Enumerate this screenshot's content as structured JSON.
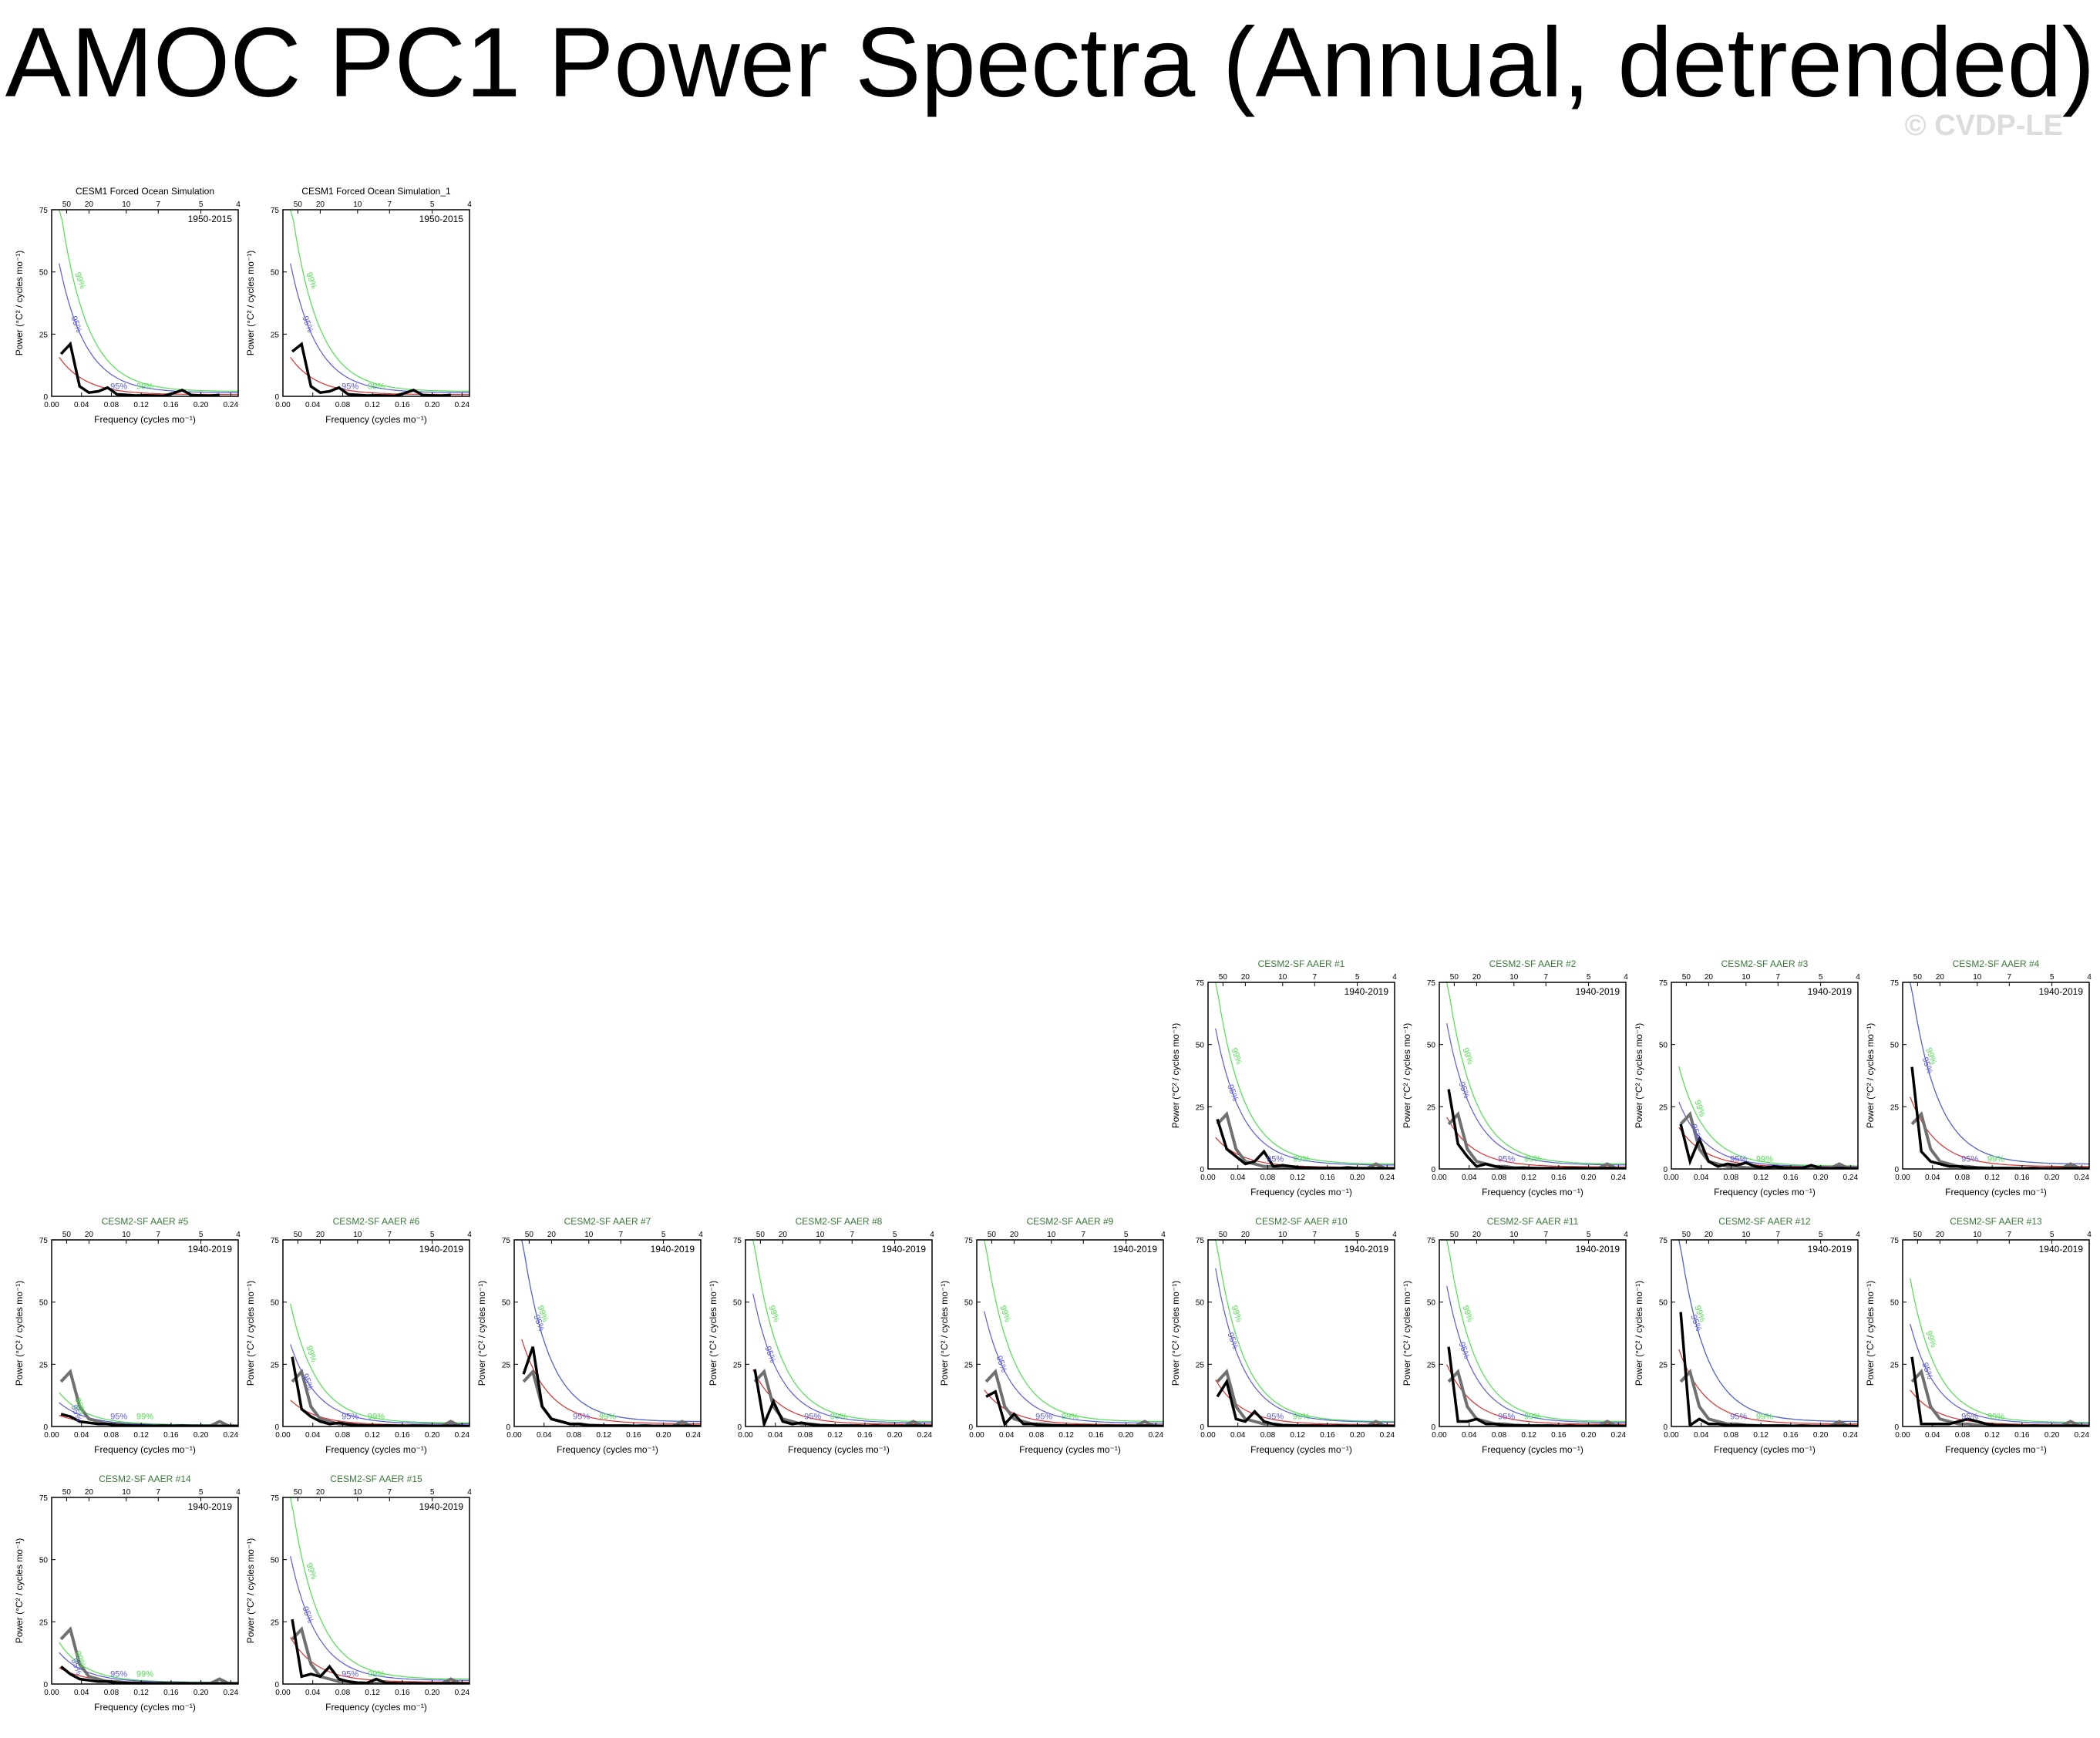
{
  "title": "AMOC PC1 Power Spectra (Annual, detrended)",
  "watermark": "© CVDP-LE",
  "colors": {
    "spectrum": "#000000",
    "ensemble_mean": "#707070",
    "red_noise": "#e03030",
    "conf95": "#5a5ae0",
    "conf99": "#50e050",
    "mean_peak": "#3a8a3a",
    "member_title": "#3a7a3a",
    "obs_title": "#000000"
  },
  "axes": {
    "xlabel": "Frequency (cycles mo⁻¹)",
    "ylabel": "Power (°C² / cycles mo⁻¹)",
    "xticks": [
      "0.00",
      "0.04",
      "0.08",
      "0.12",
      "0.16",
      "0.20",
      "0.24"
    ],
    "yticks": [
      "0",
      "25",
      "50",
      "75"
    ],
    "period_ticks": [
      "50",
      "20",
      "10",
      "7",
      "5",
      "4"
    ],
    "ci_labels": [
      "95%",
      "99%"
    ],
    "xlim": [
      0,
      0.25
    ],
    "ylim": [
      0,
      75
    ]
  },
  "chart_data": [
    {
      "type": "line",
      "title": "CESM1 Forced Ocean Simulation",
      "years": "1950-2015",
      "spectrum": [
        17,
        21,
        4,
        1.5,
        2,
        3.5,
        0.8,
        0.6,
        0.3,
        0.4,
        0.3,
        0.2,
        1.2,
        2.5,
        0.5,
        0.3,
        0.2,
        0.6
      ],
      "mean": null,
      "rn_start": 15,
      "c95_start": 52,
      "c99_start": 77
    },
    {
      "type": "line",
      "title": "CESM1 Forced Ocean Simulation_1",
      "years": "1950-2015",
      "spectrum": [
        18,
        21,
        4,
        1.5,
        2,
        3.5,
        0.8,
        0.6,
        0.3,
        0.4,
        0.3,
        0.2,
        1.2,
        2.5,
        0.5,
        0.3,
        0.2,
        0.6
      ],
      "mean": null,
      "rn_start": 15,
      "c95_start": 52,
      "c99_start": 77
    },
    {
      "type": "line",
      "title": "CESM2-SF AAER #1",
      "years": "1940-2019",
      "spectrum": [
        20,
        8,
        5,
        2,
        3,
        7,
        1,
        1.5,
        1,
        0.5,
        0.5,
        0.3,
        0.4,
        0.3,
        0.6,
        0.3,
        0.2,
        0.3,
        0.2,
        0.1
      ],
      "mean": [
        18,
        22,
        8,
        3,
        2,
        1,
        1,
        0.5,
        0.4,
        0.3,
        0.3,
        0.3,
        0.2,
        0.3,
        0.2,
        0.2,
        0.2,
        2,
        0.2,
        0.2
      ],
      "rn_start": 12,
      "c95_start": 55,
      "c99_start": 75
    },
    {
      "type": "line",
      "title": "CESM2-SF AAER #2",
      "years": "1940-2019",
      "spectrum": [
        32,
        10,
        5,
        1,
        2,
        1,
        0.5,
        0.3,
        0.5,
        0.3,
        0.2,
        0.3,
        0.2,
        0.4,
        0.3,
        0.2,
        0.2,
        0.3,
        0.2,
        0.1
      ],
      "mean": [
        18,
        22,
        8,
        3,
        2,
        1,
        1,
        0.5,
        0.4,
        0.3,
        0.3,
        0.3,
        0.2,
        0.3,
        0.2,
        0.2,
        0.2,
        2,
        0.2,
        0.2
      ],
      "rn_start": 20,
      "c95_start": 57,
      "c99_start": 75
    },
    {
      "type": "line",
      "title": "CESM2-SF AAER #3",
      "years": "1940-2019",
      "spectrum": [
        18,
        3,
        12,
        3,
        1,
        2,
        1.5,
        2.5,
        1,
        0.5,
        1,
        0.6,
        0.4,
        0.3,
        1.5,
        0.3,
        0.2,
        0.4,
        0.2,
        0.1
      ],
      "mean": [
        18,
        22,
        8,
        3,
        2,
        1,
        1,
        0.5,
        0.4,
        0.3,
        0.3,
        0.3,
        0.2,
        0.3,
        0.2,
        0.2,
        0.2,
        2,
        0.2,
        0.2
      ],
      "rn_start": 16,
      "c95_start": 26,
      "c99_start": 40
    },
    {
      "type": "line",
      "title": "CESM2-SF AAER #4",
      "years": "1940-2019",
      "spectrum": [
        41,
        7,
        3,
        2,
        1,
        1,
        0.5,
        0.5,
        0.3,
        0.3,
        0.3,
        0.2,
        0.2,
        0.3,
        0.2,
        0.2,
        0.2,
        0.3,
        0.2,
        0.1
      ],
      "mean": [
        18,
        22,
        8,
        3,
        2,
        1,
        1,
        0.5,
        0.4,
        0.3,
        0.3,
        0.3,
        0.2,
        0.3,
        0.2,
        0.2,
        0.2,
        2,
        0.2,
        0.2
      ],
      "rn_start": 28,
      "c95_start": 75,
      "c99_start": 75
    },
    {
      "type": "line",
      "title": "CESM2-SF AAER #5",
      "years": "1940-2019",
      "spectrum": [
        5,
        4,
        2,
        1.5,
        1,
        1,
        0.5,
        0.4,
        0.3,
        0.3,
        0.2,
        0.3,
        0.2,
        0.3,
        0.2,
        0.2,
        0.2,
        0.2,
        0.2,
        0.1
      ],
      "mean": [
        18,
        22,
        8,
        3,
        2,
        1,
        1,
        0.5,
        0.4,
        0.3,
        0.3,
        0.3,
        0.2,
        0.3,
        0.2,
        0.2,
        0.2,
        2,
        0.2,
        0.2
      ],
      "rn_start": 4,
      "c95_start": 9,
      "c99_start": 13
    },
    {
      "type": "line",
      "title": "CESM2-SF AAER #6",
      "years": "1940-2019",
      "spectrum": [
        28,
        7,
        4,
        2,
        1,
        1.5,
        0.8,
        0.5,
        0.4,
        0.3,
        0.4,
        0.3,
        0.2,
        0.3,
        0.3,
        0.2,
        0.2,
        0.3,
        0.2,
        0.1
      ],
      "mean": [
        18,
        22,
        8,
        3,
        2,
        1,
        1,
        0.5,
        0.4,
        0.3,
        0.3,
        0.3,
        0.2,
        0.3,
        0.2,
        0.2,
        0.2,
        2,
        0.2,
        0.2
      ],
      "rn_start": 10,
      "c95_start": 32,
      "c99_start": 48
    },
    {
      "type": "line",
      "title": "CESM2-SF AAER #7",
      "years": "1940-2019",
      "spectrum": [
        21,
        32,
        8,
        3,
        2,
        1,
        1,
        0.5,
        0.4,
        0.3,
        0.3,
        0.3,
        0.2,
        0.3,
        0.2,
        0.2,
        0.2,
        0.3,
        0.2,
        0.1
      ],
      "mean": [
        18,
        22,
        8,
        3,
        2,
        1,
        1,
        0.5,
        0.4,
        0.3,
        0.3,
        0.3,
        0.2,
        0.3,
        0.2,
        0.2,
        0.2,
        2,
        0.2,
        0.2
      ],
      "rn_start": 34,
      "c95_start": 75,
      "c99_start": 75
    },
    {
      "type": "line",
      "title": "CESM2-SF AAER #8",
      "years": "1940-2019",
      "spectrum": [
        23,
        1,
        10,
        2,
        1,
        1.5,
        0.8,
        0.5,
        0.4,
        0.3,
        0.3,
        0.3,
        0.2,
        0.3,
        0.2,
        0.2,
        0.2,
        0.3,
        0.2,
        0.1
      ],
      "mean": [
        18,
        22,
        8,
        3,
        2,
        1,
        1,
        0.5,
        0.4,
        0.3,
        0.3,
        0.3,
        0.2,
        0.3,
        0.2,
        0.2,
        0.2,
        2,
        0.2,
        0.2
      ],
      "rn_start": 22,
      "c95_start": 52,
      "c99_start": 75
    },
    {
      "type": "line",
      "title": "CESM2-SF AAER #9",
      "years": "1940-2019",
      "spectrum": [
        12,
        14,
        1,
        5,
        1,
        1,
        0.5,
        0.5,
        0.4,
        0.3,
        0.3,
        0.3,
        0.2,
        0.3,
        0.2,
        0.2,
        0.2,
        0.3,
        0.2,
        0.1
      ],
      "mean": [
        18,
        22,
        8,
        3,
        2,
        1,
        1,
        0.5,
        0.4,
        0.3,
        0.3,
        0.3,
        0.2,
        0.3,
        0.2,
        0.2,
        0.2,
        2,
        0.2,
        0.2
      ],
      "rn_start": 14,
      "c95_start": 45,
      "c99_start": 75
    },
    {
      "type": "line",
      "title": "CESM2-SF AAER #10",
      "years": "1940-2019",
      "spectrum": [
        12,
        18,
        3,
        2,
        6,
        2,
        1,
        0.5,
        0.4,
        0.3,
        0.3,
        0.3,
        0.2,
        0.3,
        0.2,
        0.2,
        0.2,
        0.3,
        0.2,
        0.1
      ],
      "mean": [
        18,
        22,
        8,
        3,
        2,
        1,
        1,
        0.5,
        0.4,
        0.3,
        0.3,
        0.3,
        0.2,
        0.3,
        0.2,
        0.2,
        0.2,
        2,
        0.2,
        0.2
      ],
      "rn_start": 18,
      "c95_start": 62,
      "c99_start": 75
    },
    {
      "type": "line",
      "title": "CESM2-SF AAER #11",
      "years": "1940-2019",
      "spectrum": [
        32,
        2,
        2,
        3,
        1,
        1,
        0.5,
        0.5,
        0.4,
        0.3,
        0.3,
        0.3,
        0.2,
        0.3,
        0.2,
        0.2,
        0.2,
        0.3,
        0.2,
        0.1
      ],
      "mean": [
        18,
        22,
        8,
        3,
        2,
        1,
        1,
        0.5,
        0.4,
        0.3,
        0.3,
        0.3,
        0.2,
        0.3,
        0.2,
        0.2,
        0.2,
        2,
        0.2,
        0.2
      ],
      "rn_start": 24,
      "c95_start": 55,
      "c99_start": 75
    },
    {
      "type": "line",
      "title": "CESM2-SF AAER #12",
      "years": "1940-2019",
      "spectrum": [
        46,
        0.5,
        3,
        1,
        1,
        0.5,
        0.5,
        0.5,
        0.4,
        0.3,
        0.3,
        0.3,
        0.2,
        0.3,
        0.2,
        0.2,
        0.2,
        0.3,
        0.2,
        0.1
      ],
      "mean": [
        18,
        22,
        8,
        3,
        2,
        1,
        1,
        0.5,
        0.4,
        0.3,
        0.3,
        0.3,
        0.2,
        0.3,
        0.2,
        0.2,
        0.2,
        2,
        0.2,
        0.2
      ],
      "rn_start": 30,
      "c95_start": 75,
      "c99_start": 75
    },
    {
      "type": "line",
      "title": "CESM2-SF AAER #13",
      "years": "1940-2019",
      "spectrum": [
        28,
        1,
        1,
        1,
        1,
        2,
        3,
        2,
        1,
        0.5,
        0.5,
        0.3,
        0.2,
        0.3,
        0.2,
        0.2,
        0.2,
        0.3,
        0.2,
        0.1
      ],
      "mean": [
        18,
        22,
        8,
        3,
        2,
        1,
        1,
        0.5,
        0.4,
        0.3,
        0.3,
        0.3,
        0.2,
        0.3,
        0.2,
        0.2,
        0.2,
        2,
        0.2,
        0.2
      ],
      "rn_start": 14,
      "c95_start": 40,
      "c99_start": 58
    },
    {
      "type": "line",
      "title": "CESM2-SF AAER #14",
      "years": "1940-2019",
      "spectrum": [
        7,
        4,
        2,
        1.5,
        1,
        1,
        0.5,
        0.4,
        0.3,
        0.3,
        0.2,
        0.3,
        0.2,
        0.3,
        0.2,
        0.2,
        0.2,
        0.2,
        0.2,
        0.1
      ],
      "mean": [
        18,
        22,
        8,
        3,
        2,
        1,
        1,
        0.5,
        0.4,
        0.3,
        0.3,
        0.3,
        0.2,
        0.3,
        0.2,
        0.2,
        0.2,
        2,
        0.2,
        0.2
      ],
      "rn_start": 6,
      "c95_start": 12,
      "c99_start": 16
    },
    {
      "type": "line",
      "title": "CESM2-SF AAER #15",
      "years": "1940-2019",
      "spectrum": [
        26,
        3,
        4,
        3,
        7,
        2,
        1,
        0.5,
        0.4,
        2,
        0.5,
        0.3,
        0.2,
        0.3,
        0.2,
        0.2,
        0.2,
        0.3,
        0.2,
        0.1
      ],
      "mean": [
        18,
        22,
        8,
        3,
        2,
        1,
        1,
        0.5,
        0.4,
        0.3,
        0.3,
        0.3,
        0.2,
        0.3,
        0.2,
        0.2,
        0.2,
        2,
        0.2,
        0.2
      ],
      "rn_start": 18,
      "c95_start": 50,
      "c99_start": 75
    }
  ]
}
